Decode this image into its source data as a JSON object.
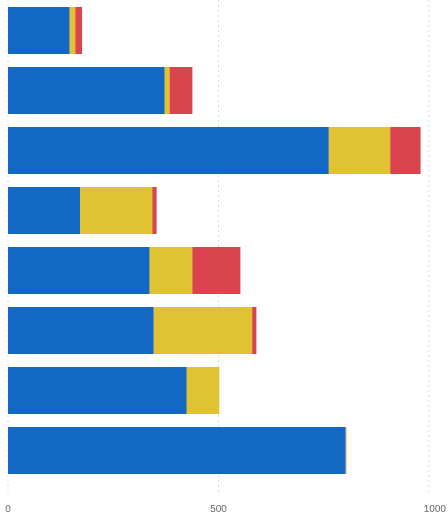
{
  "chart_data": {
    "type": "bar",
    "orientation": "horizontal",
    "stacked": true,
    "categories": [
      "",
      "",
      "",
      "",
      "",
      "",
      "",
      ""
    ],
    "series": [
      {
        "color": "#1268c3",
        "values": [
          146,
          372,
          762,
          171,
          336,
          346,
          424,
          802
        ]
      },
      {
        "color": "#e1c233",
        "values": [
          14,
          12,
          146,
          172,
          102,
          234,
          78,
          2
        ]
      },
      {
        "color": "#d9444f",
        "values": [
          16,
          54,
          72,
          10,
          114,
          10,
          0,
          0
        ]
      }
    ],
    "x_ticks": [
      0,
      500,
      1000
    ],
    "x_tick_labels": [
      "0",
      "500",
      "1000"
    ],
    "xlim": [
      0,
      1000
    ],
    "grid": true,
    "legend": "none",
    "title": "",
    "xlabel": "",
    "ylabel": ""
  }
}
